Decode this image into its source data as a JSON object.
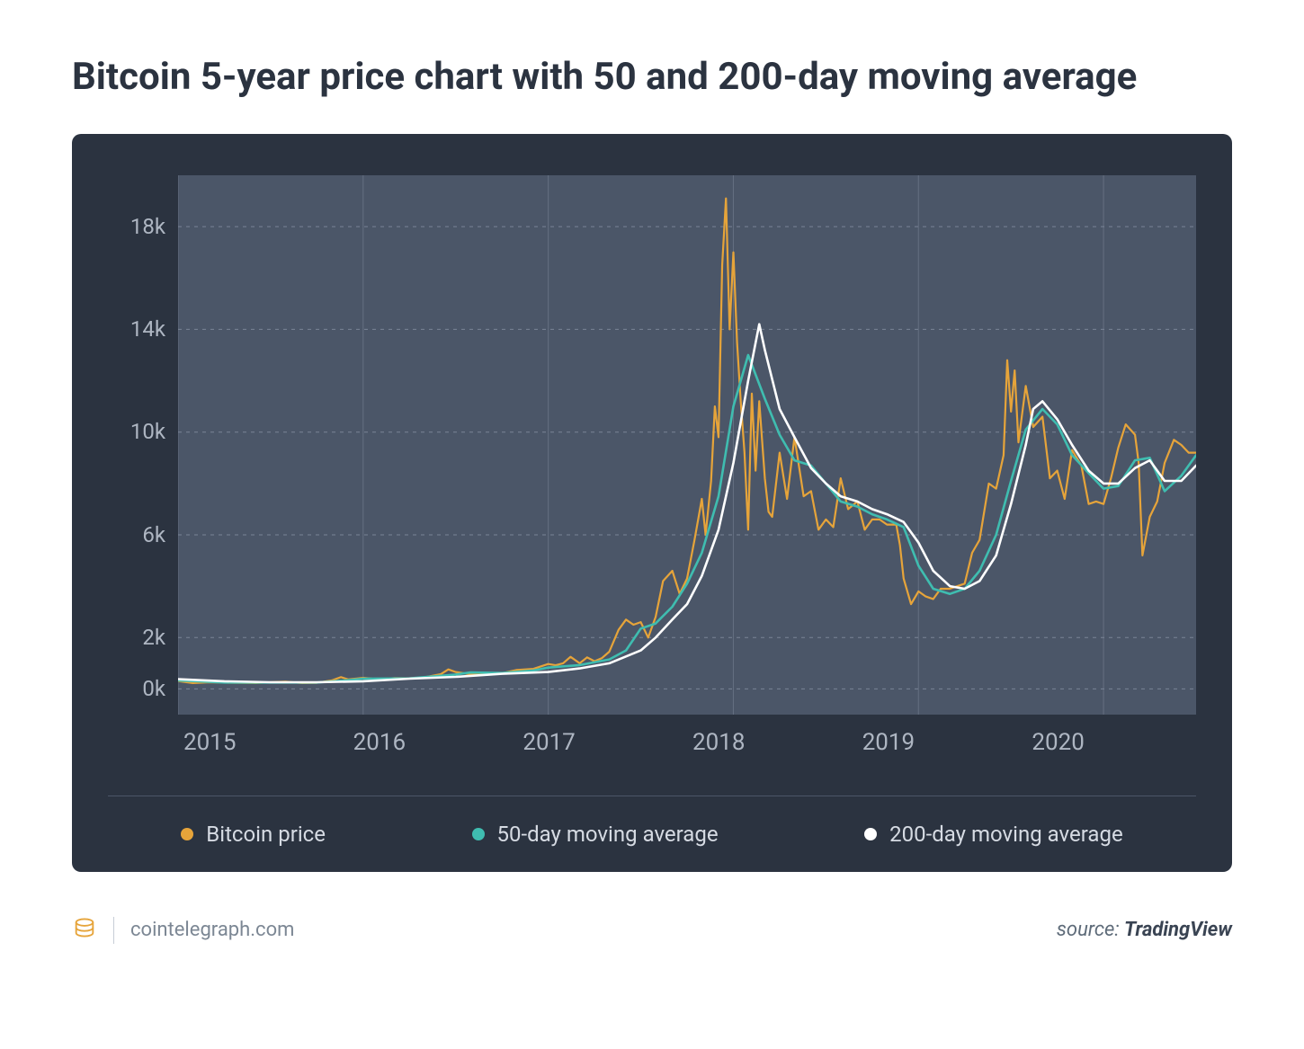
{
  "title": "Bitcoin 5-year price chart with 50 and 200-day moving average",
  "chart": {
    "type": "line",
    "background_color": "#2b3340",
    "plot_bg_color": "#4b5668",
    "grid_color": "#7a8496",
    "axis_text_color": "#aeb6c2",
    "legend_text_color": "#d6dbe3",
    "xlim": [
      2015,
      2020.5
    ],
    "ylim": [
      -1000,
      20000
    ],
    "yticks": [
      0,
      2000,
      6000,
      10000,
      14000,
      18000
    ],
    "ytick_labels": [
      "0k",
      "2k",
      "6k",
      "10k",
      "14k",
      "18k"
    ],
    "xticks": [
      2015,
      2016,
      2017,
      2018,
      2019,
      2020
    ],
    "xtick_labels": [
      "2015",
      "2016",
      "2017",
      "2018",
      "2019",
      "2020"
    ],
    "series": [
      {
        "name": "Bitcoin price",
        "color": "#e6a43a",
        "line_width": 2.2,
        "data": [
          [
            2015.0,
            310
          ],
          [
            2015.08,
            230
          ],
          [
            2015.17,
            260
          ],
          [
            2015.25,
            245
          ],
          [
            2015.33,
            235
          ],
          [
            2015.42,
            230
          ],
          [
            2015.5,
            260
          ],
          [
            2015.58,
            280
          ],
          [
            2015.67,
            230
          ],
          [
            2015.75,
            240
          ],
          [
            2015.83,
            330
          ],
          [
            2015.88,
            460
          ],
          [
            2015.92,
            370
          ],
          [
            2016.0,
            430
          ],
          [
            2016.08,
            380
          ],
          [
            2016.17,
            420
          ],
          [
            2016.25,
            415
          ],
          [
            2016.33,
            450
          ],
          [
            2016.42,
            580
          ],
          [
            2016.46,
            760
          ],
          [
            2016.5,
            660
          ],
          [
            2016.58,
            570
          ],
          [
            2016.67,
            610
          ],
          [
            2016.75,
            610
          ],
          [
            2016.83,
            740
          ],
          [
            2016.92,
            780
          ],
          [
            2017.0,
            970
          ],
          [
            2017.04,
            920
          ],
          [
            2017.08,
            1000
          ],
          [
            2017.12,
            1250
          ],
          [
            2017.17,
            1000
          ],
          [
            2017.21,
            1230
          ],
          [
            2017.25,
            1080
          ],
          [
            2017.29,
            1200
          ],
          [
            2017.33,
            1450
          ],
          [
            2017.38,
            2300
          ],
          [
            2017.42,
            2700
          ],
          [
            2017.46,
            2500
          ],
          [
            2017.5,
            2600
          ],
          [
            2017.54,
            2000
          ],
          [
            2017.58,
            2800
          ],
          [
            2017.62,
            4200
          ],
          [
            2017.67,
            4600
          ],
          [
            2017.71,
            3700
          ],
          [
            2017.75,
            4300
          ],
          [
            2017.79,
            5800
          ],
          [
            2017.83,
            7400
          ],
          [
            2017.85,
            6000
          ],
          [
            2017.88,
            8100
          ],
          [
            2017.9,
            11000
          ],
          [
            2017.92,
            9800
          ],
          [
            2017.94,
            16500
          ],
          [
            2017.96,
            19100
          ],
          [
            2017.98,
            14000
          ],
          [
            2018.0,
            17000
          ],
          [
            2018.02,
            13500
          ],
          [
            2018.04,
            11200
          ],
          [
            2018.06,
            9200
          ],
          [
            2018.08,
            6200
          ],
          [
            2018.1,
            11500
          ],
          [
            2018.12,
            8500
          ],
          [
            2018.14,
            11200
          ],
          [
            2018.17,
            8200
          ],
          [
            2018.19,
            6900
          ],
          [
            2018.21,
            6700
          ],
          [
            2018.25,
            9200
          ],
          [
            2018.29,
            7400
          ],
          [
            2018.33,
            9800
          ],
          [
            2018.38,
            7500
          ],
          [
            2018.42,
            7700
          ],
          [
            2018.46,
            6200
          ],
          [
            2018.5,
            6600
          ],
          [
            2018.54,
            6300
          ],
          [
            2018.58,
            8200
          ],
          [
            2018.62,
            7000
          ],
          [
            2018.67,
            7300
          ],
          [
            2018.71,
            6200
          ],
          [
            2018.75,
            6600
          ],
          [
            2018.79,
            6600
          ],
          [
            2018.83,
            6400
          ],
          [
            2018.88,
            6400
          ],
          [
            2018.9,
            5600
          ],
          [
            2018.92,
            4300
          ],
          [
            2018.96,
            3300
          ],
          [
            2019.0,
            3800
          ],
          [
            2019.04,
            3600
          ],
          [
            2019.08,
            3500
          ],
          [
            2019.12,
            3900
          ],
          [
            2019.17,
            3900
          ],
          [
            2019.21,
            4000
          ],
          [
            2019.25,
            4100
          ],
          [
            2019.29,
            5300
          ],
          [
            2019.33,
            5800
          ],
          [
            2019.38,
            8000
          ],
          [
            2019.42,
            7800
          ],
          [
            2019.46,
            9100
          ],
          [
            2019.48,
            12800
          ],
          [
            2019.5,
            10800
          ],
          [
            2019.52,
            12400
          ],
          [
            2019.54,
            9600
          ],
          [
            2019.58,
            11800
          ],
          [
            2019.62,
            10200
          ],
          [
            2019.67,
            10600
          ],
          [
            2019.71,
            8200
          ],
          [
            2019.75,
            8500
          ],
          [
            2019.79,
            7400
          ],
          [
            2019.83,
            9300
          ],
          [
            2019.88,
            8700
          ],
          [
            2019.92,
            7200
          ],
          [
            2019.96,
            7300
          ],
          [
            2020.0,
            7200
          ],
          [
            2020.04,
            8200
          ],
          [
            2020.08,
            9400
          ],
          [
            2020.12,
            10300
          ],
          [
            2020.17,
            9900
          ],
          [
            2020.19,
            8800
          ],
          [
            2020.21,
            5200
          ],
          [
            2020.25,
            6700
          ],
          [
            2020.29,
            7300
          ],
          [
            2020.33,
            8800
          ],
          [
            2020.38,
            9700
          ],
          [
            2020.42,
            9500
          ],
          [
            2020.46,
            9200
          ],
          [
            2020.5,
            9200
          ]
        ]
      },
      {
        "name": "50-day moving average",
        "color": "#3fbdb0",
        "line_width": 2.6,
        "data": [
          [
            2015.0,
            330
          ],
          [
            2015.25,
            250
          ],
          [
            2015.5,
            250
          ],
          [
            2015.75,
            250
          ],
          [
            2015.92,
            340
          ],
          [
            2016.0,
            400
          ],
          [
            2016.25,
            410
          ],
          [
            2016.5,
            560
          ],
          [
            2016.58,
            640
          ],
          [
            2016.75,
            620
          ],
          [
            2016.92,
            720
          ],
          [
            2017.0,
            830
          ],
          [
            2017.17,
            930
          ],
          [
            2017.33,
            1150
          ],
          [
            2017.42,
            1500
          ],
          [
            2017.5,
            2350
          ],
          [
            2017.58,
            2550
          ],
          [
            2017.67,
            3200
          ],
          [
            2017.75,
            4100
          ],
          [
            2017.83,
            5300
          ],
          [
            2017.92,
            7500
          ],
          [
            2018.0,
            11000
          ],
          [
            2018.08,
            13000
          ],
          [
            2018.17,
            11300
          ],
          [
            2018.25,
            9900
          ],
          [
            2018.33,
            8900
          ],
          [
            2018.42,
            8700
          ],
          [
            2018.5,
            8000
          ],
          [
            2018.58,
            7300
          ],
          [
            2018.67,
            7100
          ],
          [
            2018.75,
            6800
          ],
          [
            2018.83,
            6600
          ],
          [
            2018.92,
            6300
          ],
          [
            2019.0,
            4800
          ],
          [
            2019.08,
            3900
          ],
          [
            2019.17,
            3700
          ],
          [
            2019.25,
            3900
          ],
          [
            2019.33,
            4600
          ],
          [
            2019.42,
            6000
          ],
          [
            2019.5,
            8100
          ],
          [
            2019.58,
            10100
          ],
          [
            2019.67,
            10900
          ],
          [
            2019.75,
            10300
          ],
          [
            2019.83,
            9100
          ],
          [
            2019.92,
            8400
          ],
          [
            2020.0,
            7800
          ],
          [
            2020.08,
            7900
          ],
          [
            2020.17,
            8900
          ],
          [
            2020.25,
            9000
          ],
          [
            2020.33,
            7700
          ],
          [
            2020.42,
            8300
          ],
          [
            2020.5,
            9100
          ]
        ]
      },
      {
        "name": "200-day moving average",
        "color": "#ffffff",
        "line_width": 2.6,
        "data": [
          [
            2015.0,
            380
          ],
          [
            2015.25,
            300
          ],
          [
            2015.5,
            260
          ],
          [
            2015.75,
            260
          ],
          [
            2016.0,
            300
          ],
          [
            2016.25,
            400
          ],
          [
            2016.5,
            470
          ],
          [
            2016.75,
            590
          ],
          [
            2017.0,
            660
          ],
          [
            2017.17,
            800
          ],
          [
            2017.33,
            1000
          ],
          [
            2017.5,
            1500
          ],
          [
            2017.58,
            2000
          ],
          [
            2017.67,
            2700
          ],
          [
            2017.75,
            3300
          ],
          [
            2017.83,
            4400
          ],
          [
            2017.92,
            6200
          ],
          [
            2018.0,
            8800
          ],
          [
            2018.08,
            12000
          ],
          [
            2018.14,
            14200
          ],
          [
            2018.17,
            13200
          ],
          [
            2018.25,
            10900
          ],
          [
            2018.33,
            9800
          ],
          [
            2018.42,
            8600
          ],
          [
            2018.5,
            8000
          ],
          [
            2018.58,
            7500
          ],
          [
            2018.67,
            7300
          ],
          [
            2018.75,
            7000
          ],
          [
            2018.83,
            6800
          ],
          [
            2018.92,
            6500
          ],
          [
            2019.0,
            5700
          ],
          [
            2019.08,
            4600
          ],
          [
            2019.17,
            4000
          ],
          [
            2019.25,
            3900
          ],
          [
            2019.33,
            4200
          ],
          [
            2019.42,
            5200
          ],
          [
            2019.5,
            7200
          ],
          [
            2019.58,
            9500
          ],
          [
            2019.62,
            10900
          ],
          [
            2019.67,
            11200
          ],
          [
            2019.75,
            10500
          ],
          [
            2019.83,
            9500
          ],
          [
            2019.92,
            8500
          ],
          [
            2020.0,
            8000
          ],
          [
            2020.08,
            8000
          ],
          [
            2020.17,
            8600
          ],
          [
            2020.25,
            8900
          ],
          [
            2020.33,
            8100
          ],
          [
            2020.42,
            8100
          ],
          [
            2020.5,
            8700
          ]
        ]
      }
    ]
  },
  "legend": [
    {
      "label": "Bitcoin price",
      "color": "#e6a43a"
    },
    {
      "label": "50-day moving average",
      "color": "#3fbdb0"
    },
    {
      "label": "200-day moving average",
      "color": "#ffffff"
    }
  ],
  "footer": {
    "site": "cointelegraph.com",
    "source_prefix": "source: ",
    "source_name": "TradingView"
  }
}
